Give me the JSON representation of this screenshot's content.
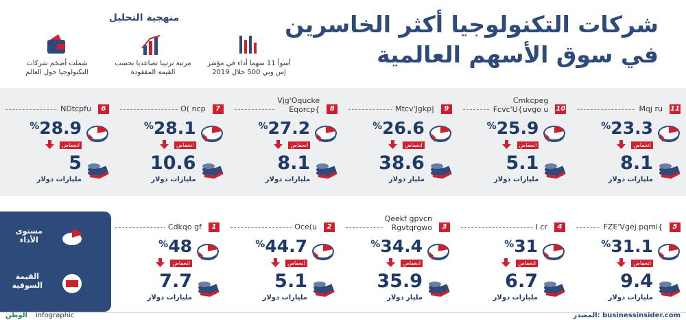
{
  "header": {
    "title_lines": [
      "شركات التكنولوجيا أكثر الخاسرين",
      "في سوق الأسهم العالمية"
    ]
  },
  "method": {
    "title": "منهجية التحليل",
    "items": [
      [
        "أسوأ 11 سهما أداء في مؤشر",
        "إس وبي 500 خلال 2019"
      ],
      [
        "مرتبة ترتيبا تصاعديا بحسب",
        "القيمة المفقودة"
      ],
      [
        "شملت أضخم شركات",
        "التكنولوجيا حول العالم"
      ]
    ]
  },
  "labels": {
    "decline": "انخفاض",
    "percent_sign": "%"
  },
  "companies": [
    {
      "rank": 11,
      "name": [
        "Mqj ru"
      ],
      "decline": 23.3,
      "value": 8.1,
      "unit": "مليارات دولار"
    },
    {
      "rank": 10,
      "name": [
        "Cmkcpeg",
        "Fcvc'U{uvgo u"
      ],
      "decline": 25.9,
      "value": 5.1,
      "unit": "مليارات دولار"
    },
    {
      "rank": 9,
      "name": [
        "Mtcv'Jgkp|"
      ],
      "decline": 26.6,
      "value": 38.6,
      "unit": "مليار دولار"
    },
    {
      "rank": 8,
      "name": [
        "Vjg'Oqucke",
        "Eqorcp{"
      ],
      "decline": 27.2,
      "value": 8.1,
      "unit": "مليارات دولار"
    },
    {
      "rank": 7,
      "name": [
        "O( ncp"
      ],
      "decline": 28.1,
      "value": 10.6,
      "unit": "مليارات دولار"
    },
    {
      "rank": 6,
      "name": [
        "NDtcpfu"
      ],
      "decline": 28.9,
      "value": 5,
      "unit": "مليارات دولار"
    },
    {
      "rank": 5,
      "name": [
        "FZE'Vgej pqmi{"
      ],
      "decline": 31.1,
      "value": 9.4,
      "unit": "مليارات دولار"
    },
    {
      "rank": 4,
      "name": [
        "I cr"
      ],
      "decline": 31,
      "value": 6.7,
      "unit": "مليارات دولار"
    },
    {
      "rank": 3,
      "name": [
        "Qeekf gpvcn",
        "Rgvtqrgwo"
      ],
      "decline": 34.4,
      "value": 35.9,
      "unit": "مليار دولار"
    },
    {
      "rank": 2,
      "name": [
        "Oce(u"
      ],
      "decline": 44.7,
      "value": 5.1,
      "unit": "مليارات دولار"
    },
    {
      "rank": 1,
      "name": [
        "Cdkqo gf"
      ],
      "decline": 48,
      "value": 7.7,
      "unit": "مليارات دولار"
    }
  ],
  "legend": [
    [
      "مستوى",
      "الأداء"
    ],
    [
      "القيمة",
      "السوقية"
    ]
  ],
  "footer": {
    "source": "المصدر: businessinsider.com",
    "brand": "infographic",
    "logo": "الوطن"
  }
}
